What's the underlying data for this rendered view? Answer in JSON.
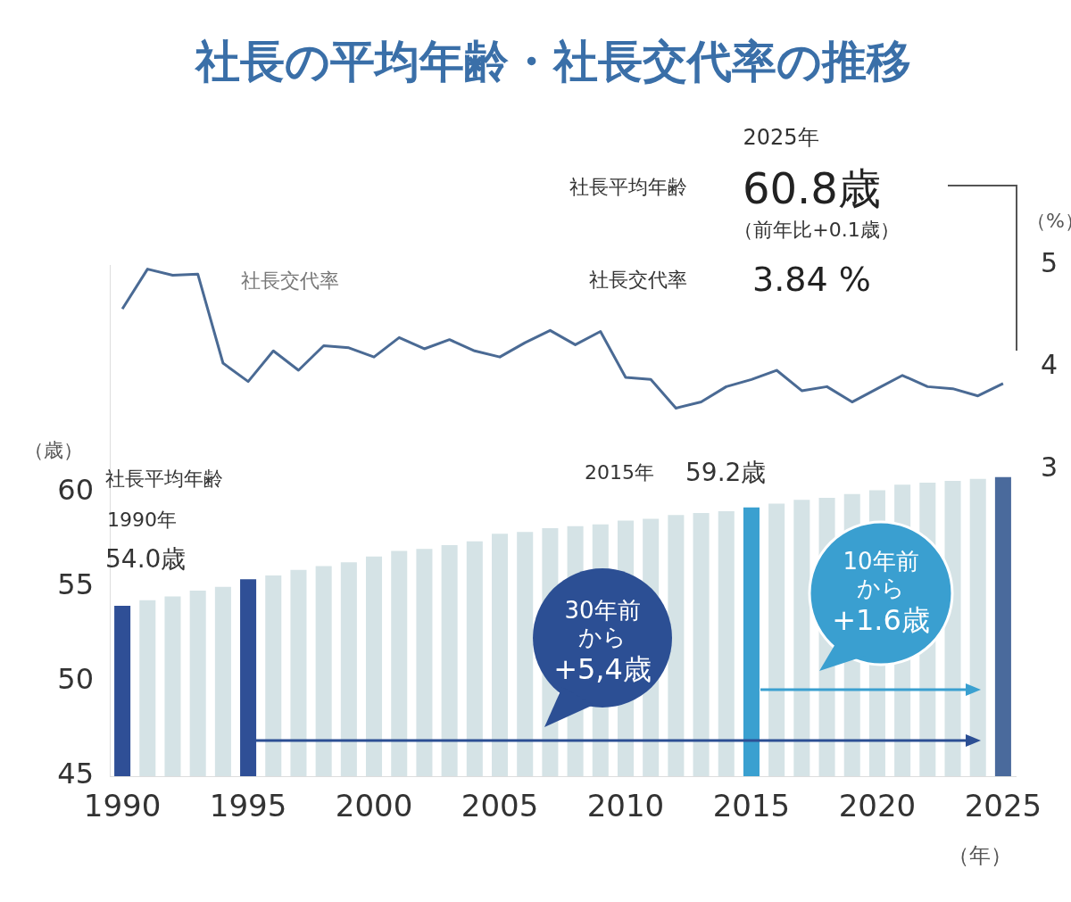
{
  "chart_data": {
    "type": "bar",
    "title": "社長の平均年齢・社長交代率の推移",
    "xlabel": "（年）",
    "ylabel": "（歳）",
    "y2label": "（%）",
    "categories": [
      "1990",
      null,
      null,
      null,
      null,
      "1995",
      null,
      null,
      null,
      null,
      "2000",
      null,
      null,
      null,
      null,
      "2005",
      null,
      null,
      null,
      null,
      "2010",
      null,
      null,
      null,
      null,
      "2015",
      null,
      null,
      null,
      null,
      "2020",
      null,
      null,
      null,
      null,
      "2025"
    ],
    "series": [
      {
        "colors": [
          "#2f4f96",
          "#d5e3e6",
          "#d5e3e6",
          "#d5e3e6",
          "#d5e3e6",
          "#2f4f96",
          "#d5e3e6",
          "#d5e3e6",
          "#d5e3e6",
          "#d5e3e6",
          "#d5e3e6",
          "#d5e3e6",
          "#d5e3e6",
          "#d5e3e6",
          "#d5e3e6",
          "#d5e3e6",
          "#d5e3e6",
          "#d5e3e6",
          "#d5e3e6",
          "#d5e3e6",
          "#d5e3e6",
          "#d5e3e6",
          "#d5e3e6",
          "#d5e3e6",
          "#d5e3e6",
          "#3aa0d0",
          "#d5e3e6",
          "#d5e3e6",
          "#d5e3e6",
          "#d5e3e6",
          "#d5e3e6",
          "#d5e3e6",
          "#d5e3e6",
          "#d5e3e6",
          "#d5e3e6",
          "#4a6a9c"
        ],
        "values": [
          54.0,
          54.3,
          54.5,
          54.8,
          55.0,
          55.4,
          55.6,
          55.9,
          56.1,
          56.3,
          56.6,
          56.9,
          57.0,
          57.2,
          57.4,
          57.8,
          57.9,
          58.1,
          58.2,
          58.3,
          58.5,
          58.6,
          58.8,
          58.9,
          59.0,
          59.2,
          59.4,
          59.6,
          59.7,
          59.9,
          60.1,
          60.4,
          60.5,
          60.6,
          60.7,
          60.8
        ]
      },
      {
        "name": "社長交代率",
        "type": "line",
        "axis": "y2",
        "color": "#4a6a94",
        "values": [
          4.57,
          4.96,
          4.9,
          4.91,
          4.04,
          3.86,
          4.16,
          3.97,
          4.21,
          4.19,
          4.1,
          4.29,
          4.18,
          4.27,
          4.16,
          4.1,
          4.24,
          4.36,
          4.22,
          4.35,
          3.9,
          3.88,
          3.6,
          3.66,
          3.81,
          3.88,
          3.97,
          3.77,
          3.81,
          3.66,
          3.79,
          3.92,
          3.81,
          3.79,
          3.72,
          3.84
        ]
      }
    ],
    "ylim": [
      45,
      72
    ],
    "yticks": [
      45,
      50,
      55,
      60
    ],
    "y2lim": [
      0,
      5
    ],
    "y2ticks": [
      3,
      4,
      5
    ],
    "grid": false,
    "legend": false,
    "annotations": [
      "2025年",
      "社長平均年齢",
      "60.8歳",
      "（前年比+0.1歳）",
      "社長交代率",
      "3.84 %",
      "1990年",
      "54.0歳",
      "2015年",
      "59.2歳",
      "30年前",
      "から",
      "+5,4歳",
      "10年前",
      "から",
      "+1.6歳",
      "社長平均年齢"
    ]
  }
}
